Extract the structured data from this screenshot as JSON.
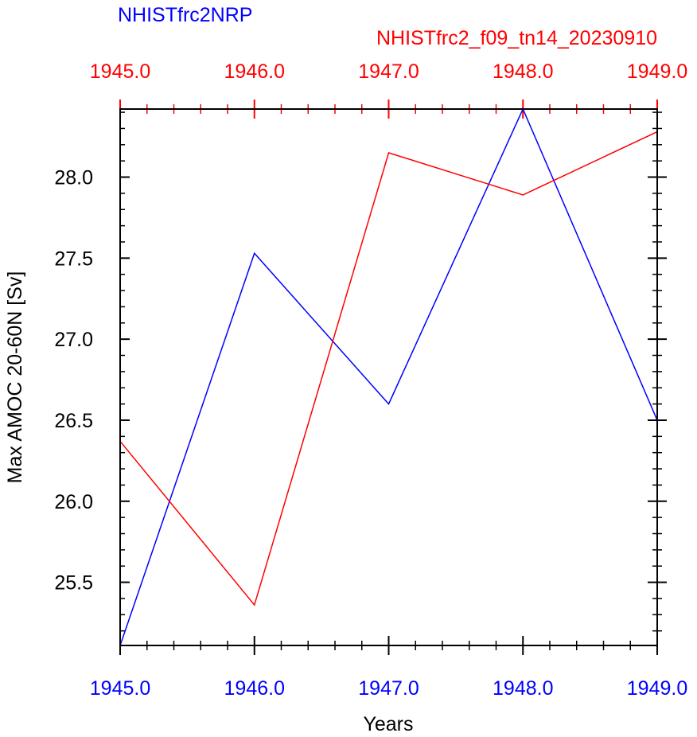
{
  "chart_data": {
    "type": "line",
    "titles": {
      "left": "NHISTfrc2NRP",
      "right": "NHISTfrc2_f09_tn14_20230910"
    },
    "xlabel": "Years",
    "ylabel": "Max AMOC 20-60N [Sv]",
    "x": [
      1945,
      1946,
      1947,
      1948,
      1949
    ],
    "xlim": [
      1945,
      1949
    ],
    "ylim": [
      25.11,
      28.42
    ],
    "x_tick_labels": [
      "1945.0",
      "1946.0",
      "1947.0",
      "1948.0",
      "1949.0"
    ],
    "y_ticks": [
      25.5,
      26.0,
      26.5,
      27.0,
      27.5,
      28.0
    ],
    "y_tick_labels": [
      "25.5",
      "26.0",
      "26.5",
      "27.0",
      "27.5",
      "28.0"
    ],
    "grid": false,
    "series": [
      {
        "name": "NHISTfrc2NRP",
        "axis": "bottom",
        "values": [
          25.11,
          27.53,
          26.6,
          28.42,
          26.5
        ]
      },
      {
        "name": "NHISTfrc2_f09_tn14_20230910",
        "axis": "top",
        "values": [
          26.37,
          25.36,
          28.15,
          27.89,
          28.28
        ]
      }
    ]
  },
  "colors": {
    "series_0": "#0000ff",
    "series_1": "#ff0000",
    "frame": "#000000"
  }
}
